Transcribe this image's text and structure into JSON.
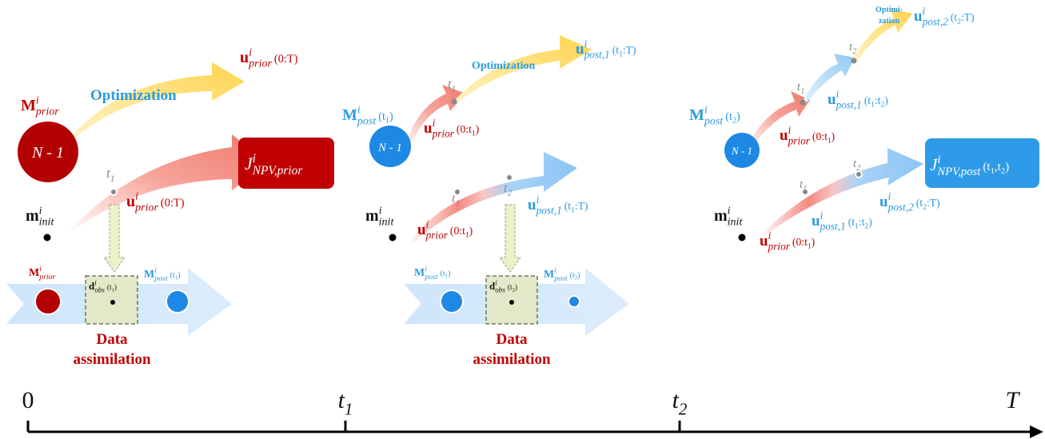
{
  "panels": [
    {
      "prior_model": {
        "base": "M",
        "sup": "i",
        "sub": "prior"
      },
      "ensemble_size": "N - 1",
      "optimization": "Optimization",
      "optimized_control": {
        "base": "u",
        "sup": "i",
        "sub": "prior",
        "arg": [
          "(0:T)"
        ]
      },
      "time_marker": {
        "base": "t",
        "sub": "1"
      },
      "applied_control": {
        "base": "u",
        "sup": "i",
        "sub": "prior",
        "arg": [
          "(0:T)"
        ]
      },
      "objective": {
        "base": "J",
        "sup": "i",
        "sub": "NPV,prior"
      },
      "initial_model": {
        "base": "m",
        "sup": "i",
        "sub": "init"
      },
      "assimilation": {
        "before": {
          "base": "M",
          "sup": "i",
          "sub": "prior"
        },
        "observation": {
          "base": "d",
          "sup": "i",
          "sub": "obs",
          "arg": [
            "(t",
            "1",
            ")"
          ]
        },
        "after": {
          "base": "M",
          "sup": "i",
          "sub": "post",
          "arg": [
            "(t",
            "1",
            ")"
          ]
        },
        "label": [
          "Data",
          "assimilation"
        ]
      }
    },
    {
      "prior_model": {
        "base": "M",
        "sup": "i",
        "sub": "post",
        "arg": [
          "(t",
          "1",
          ")"
        ]
      },
      "ensemble_size": "N - 1",
      "upper_time_marker": {
        "base": "t",
        "sub": "1"
      },
      "past_control": {
        "base": "u",
        "sup": "i",
        "sub": "prior",
        "arg": [
          "(0:t",
          "1",
          ")"
        ]
      },
      "optimization": "Optimization",
      "optimized_control": {
        "base": "u",
        "sup": "i",
        "sub": "post,1",
        "arg": [
          "(t",
          "1",
          ":T)"
        ]
      },
      "time_markers": [
        {
          "base": "t",
          "sub": "1"
        },
        {
          "base": "t",
          "sub": "2"
        }
      ],
      "initial_model": {
        "base": "m",
        "sup": "i",
        "sub": "init"
      },
      "applied_prior": {
        "base": "u",
        "sup": "i",
        "sub": "prior",
        "arg": [
          "(0:t",
          "1",
          ")"
        ]
      },
      "applied_post": {
        "base": "u",
        "sup": "i",
        "sub": "post,1",
        "arg": [
          "(t",
          "1",
          ":T)"
        ]
      },
      "assimilation": {
        "before": {
          "base": "M",
          "sup": "i",
          "sub": "post",
          "arg": [
            "(t",
            "1",
            ")"
          ]
        },
        "observation": {
          "base": "d",
          "sup": "i",
          "sub": "obs",
          "arg": [
            "(t",
            "2",
            ")"
          ]
        },
        "after": {
          "base": "M",
          "sup": "i",
          "sub": "post",
          "arg": [
            "(t",
            "2",
            ")"
          ]
        },
        "label": [
          "Data",
          "assimilation"
        ]
      }
    },
    {
      "optimization": [
        "Optimi-",
        "zation"
      ],
      "optimized_control": {
        "base": "u",
        "sup": "i",
        "sub": "post,2",
        "arg": [
          "(t",
          "2",
          ":T)"
        ]
      },
      "upper_time_markers": [
        {
          "base": "t",
          "sub": "1"
        },
        {
          "base": "t",
          "sub": "2"
        }
      ],
      "mid_control": {
        "base": "u",
        "sup": "i",
        "sub": "post,1",
        "arg": [
          "(t",
          "1",
          ":t",
          "2",
          ")"
        ]
      },
      "prior_model": {
        "base": "M",
        "sup": "i",
        "sub": "post",
        "arg": [
          "(t",
          "2",
          ")"
        ]
      },
      "ensemble_size": "N - 1",
      "past_control": {
        "base": "u",
        "sup": "i",
        "sub": "prior",
        "arg": [
          "(0:t",
          "1",
          ")"
        ]
      },
      "time_markers": [
        {
          "base": "t",
          "sub": "1"
        },
        {
          "base": "t",
          "sub": "2"
        }
      ],
      "objective": {
        "base": "J",
        "sup": "i",
        "sub": "NPV,post",
        "arg": [
          "(t",
          "1",
          ",t",
          "2",
          ")"
        ]
      },
      "applied_post2": {
        "base": "u",
        "sup": "i",
        "sub": "post,2",
        "arg": [
          "(t",
          "2",
          ":T)"
        ]
      },
      "applied_post1": {
        "base": "u",
        "sup": "i",
        "sub": "post,1",
        "arg": [
          "(t",
          "1",
          ":t",
          "2",
          ")"
        ]
      },
      "initial_model": {
        "base": "m",
        "sup": "i",
        "sub": "init"
      },
      "applied_prior": {
        "base": "u",
        "sup": "i",
        "sub": "prior",
        "arg": [
          "(0:t",
          "1",
          ")"
        ]
      }
    }
  ],
  "timeline": {
    "ticks": [
      {
        "base": "0"
      },
      {
        "base": "t",
        "sub": "1"
      },
      {
        "base": "t",
        "sub": "2"
      },
      {
        "base": "T"
      }
    ]
  }
}
